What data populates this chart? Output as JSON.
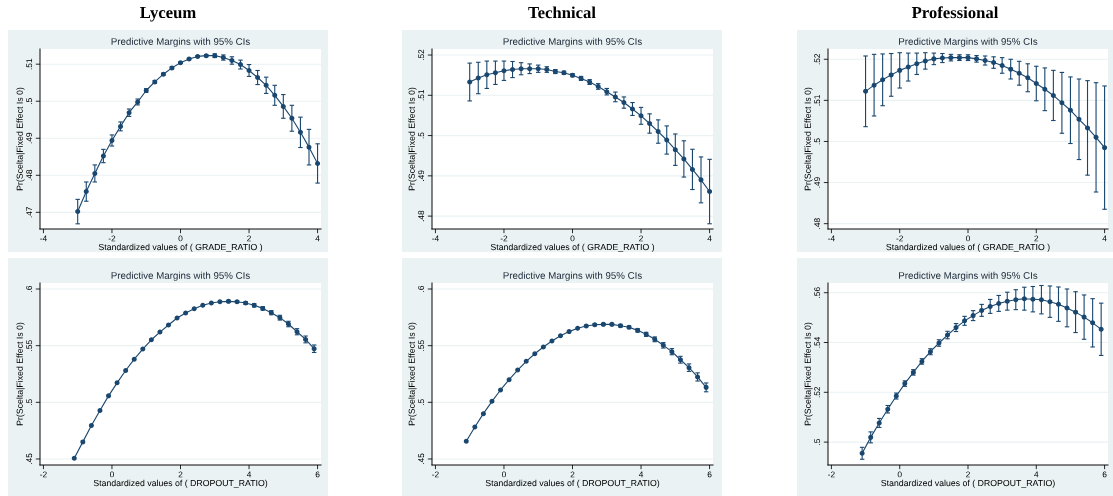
{
  "chart_data": [
    {
      "type": "line",
      "title": "Lyceum",
      "subtitle": "Predictive Margins with 95% CIs",
      "xlabel": "Standardized values of ( GRADE_RATIO )",
      "ylabel": "Pr(Scelta|Fixed Effect Is 0)",
      "x": [
        -3,
        -2.75,
        -2.5,
        -2.25,
        -2,
        -1.75,
        -1.5,
        -1.25,
        -1,
        -0.75,
        -0.5,
        -0.25,
        0,
        0.25,
        0.5,
        0.75,
        1,
        1.25,
        1.5,
        1.75,
        2,
        2.25,
        2.5,
        2.75,
        3,
        3.25,
        3.5,
        3.75,
        4
      ],
      "series": [
        {
          "color": "#1a476f",
          "values": [
            0.4702,
            0.4756,
            0.4805,
            0.4852,
            0.4894,
            0.4932,
            0.4969,
            0.4998,
            0.5029,
            0.5052,
            0.5073,
            0.509,
            0.5104,
            0.5114,
            0.5121,
            0.5123,
            0.5123,
            0.5118,
            0.511,
            0.5099,
            0.5083,
            0.5064,
            0.5043,
            0.5016,
            0.4986,
            0.4954,
            0.4916,
            0.4876,
            0.4832
          ],
          "errors": [
            0.0033,
            0.0026,
            0.0023,
            0.0018,
            0.0015,
            0.0012,
            0.001,
            0.0008,
            0.0005,
            0.0004,
            0.0003,
            0.0003,
            0.0002,
            0.0002,
            0.0002,
            0.0003,
            0.0005,
            0.0007,
            0.001,
            0.0012,
            0.0016,
            0.0019,
            0.0022,
            0.0027,
            0.0032,
            0.0035,
            0.0041,
            0.0048,
            0.0053
          ]
        }
      ],
      "xlim": [
        -4.1,
        4.1
      ],
      "xticks": [
        -4,
        -2,
        0,
        2,
        4
      ],
      "ylim": [
        0.4655,
        0.5141
      ],
      "yticks": [
        {
          "value": 0.47,
          "label": ".47"
        },
        {
          "value": 0.48,
          "label": ".48"
        },
        {
          "value": 0.49,
          "label": ".49"
        },
        {
          "value": 0.5,
          "label": ".5"
        },
        {
          "value": 0.51,
          "label": ".51"
        }
      ],
      "grid": "y",
      "marker": "circle",
      "line_style": "solid"
    },
    {
      "type": "line",
      "title": "Technical",
      "subtitle": "Predictive Margins with 95% CIs",
      "xlabel": "Standardized values of ( GRADE_RATIO )",
      "ylabel": "Pr(Scelta|Fixed Effect Is 0)",
      "x": [
        -3,
        -2.75,
        -2.5,
        -2.25,
        -2,
        -1.75,
        -1.5,
        -1.25,
        -1,
        -0.75,
        -0.5,
        -0.25,
        0,
        0.25,
        0.5,
        0.75,
        1,
        1.25,
        1.5,
        1.75,
        2,
        2.25,
        2.5,
        2.75,
        3,
        3.25,
        3.5,
        3.75,
        4
      ],
      "series": [
        {
          "color": "#1a476f",
          "values": [
            0.5133,
            0.5143,
            0.5151,
            0.5156,
            0.5161,
            0.5164,
            0.5166,
            0.5166,
            0.5166,
            0.5164,
            0.5159,
            0.5156,
            0.515,
            0.5142,
            0.5133,
            0.5122,
            0.5109,
            0.5096,
            0.5082,
            0.5066,
            0.5049,
            0.503,
            0.501,
            0.4989,
            0.4965,
            0.4942,
            0.4916,
            0.489,
            0.4861
          ],
          "errors": [
            0.0047,
            0.0039,
            0.0034,
            0.0029,
            0.0024,
            0.002,
            0.0015,
            0.0012,
            0.0009,
            0.0007,
            0.0005,
            0.0004,
            0.0004,
            0.0005,
            0.0006,
            0.0007,
            0.0008,
            0.0012,
            0.0014,
            0.0016,
            0.0021,
            0.0024,
            0.0029,
            0.0035,
            0.0039,
            0.0045,
            0.005,
            0.0057,
            0.008
          ]
        }
      ],
      "xlim": [
        -4.1,
        4.1
      ],
      "xticks": [
        -4,
        -2,
        0,
        2,
        4
      ],
      "ylim": [
        0.4768,
        0.5215
      ],
      "yticks": [
        {
          "value": 0.48,
          "label": ".48"
        },
        {
          "value": 0.49,
          "label": ".49"
        },
        {
          "value": 0.5,
          "label": ".5"
        },
        {
          "value": 0.51,
          "label": ".51"
        },
        {
          "value": 0.52,
          "label": ".52"
        }
      ],
      "grid": "y",
      "marker": "circle",
      "line_style": "solid"
    },
    {
      "type": "line",
      "title": "Professional",
      "subtitle": "Predictive Margins with 95% CIs",
      "xlabel": "Standardized values of ( GRADE_RATIO )",
      "ylabel": "Pr(Scelta|Fixed Effect Is 0)",
      "x": [
        -3,
        -2.75,
        -2.5,
        -2.25,
        -2,
        -1.75,
        -1.5,
        -1.25,
        -1,
        -0.75,
        -0.5,
        -0.25,
        0,
        0.25,
        0.5,
        0.75,
        1,
        1.25,
        1.5,
        1.75,
        2,
        2.25,
        2.5,
        2.75,
        3,
        3.25,
        3.5,
        3.75,
        4
      ],
      "series": [
        {
          "color": "#1a476f",
          "values": [
            0.5122,
            0.5137,
            0.515,
            0.5162,
            0.5173,
            0.5181,
            0.5189,
            0.5196,
            0.5201,
            0.5203,
            0.5204,
            0.5204,
            0.5204,
            0.5201,
            0.5197,
            0.5192,
            0.5185,
            0.5176,
            0.5166,
            0.5155,
            0.5141,
            0.5127,
            0.5112,
            0.5094,
            0.5076,
            0.5054,
            0.5033,
            0.501,
            0.4985
          ],
          "errors": [
            0.0086,
            0.0075,
            0.0063,
            0.0052,
            0.0043,
            0.0034,
            0.0026,
            0.002,
            0.0014,
            0.0011,
            0.0008,
            0.0007,
            0.0007,
            0.0008,
            0.0011,
            0.0014,
            0.0019,
            0.0024,
            0.0029,
            0.0034,
            0.0042,
            0.0052,
            0.0061,
            0.0074,
            0.0081,
            0.0098,
            0.0115,
            0.0133,
            0.015
          ]
        }
      ],
      "xlim": [
        -4.1,
        4.1
      ],
      "xticks": [
        -4,
        -2,
        0,
        2,
        4
      ],
      "ylim": [
        0.4787,
        0.5225
      ],
      "yticks": [
        {
          "value": 0.48,
          "label": ".48"
        },
        {
          "value": 0.49,
          "label": ".49"
        },
        {
          "value": 0.5,
          "label": ".5"
        },
        {
          "value": 0.51,
          "label": ".51"
        },
        {
          "value": 0.52,
          "label": ".52"
        }
      ],
      "grid": "y",
      "marker": "circle",
      "line_style": "solid"
    },
    {
      "type": "line",
      "title": "Predictive Margins with 95% CIs",
      "xlabel": "Standardized values of ( DROPOUT_RATIO)",
      "ylabel": "Pr(Scelta|Fixed Effect Is 0)",
      "x": [
        -1.1,
        -0.85,
        -0.6,
        -0.35,
        -0.1,
        0.15,
        0.4,
        0.65,
        0.9,
        1.15,
        1.4,
        1.65,
        1.9,
        2.15,
        2.4,
        2.65,
        2.9,
        3.15,
        3.4,
        3.65,
        3.9,
        4.15,
        4.4,
        4.65,
        4.9,
        5.15,
        5.4,
        5.65,
        5.9
      ],
      "series": [
        {
          "color": "#1a476f",
          "values": [
            0.4506,
            0.4651,
            0.4795,
            0.4928,
            0.5057,
            0.5172,
            0.5281,
            0.5381,
            0.547,
            0.5552,
            0.562,
            0.5682,
            0.5744,
            0.5788,
            0.5826,
            0.5856,
            0.5876,
            0.5888,
            0.5891,
            0.5888,
            0.5876,
            0.5856,
            0.5829,
            0.5791,
            0.5747,
            0.5691,
            0.5623,
            0.5555,
            0.5473
          ],
          "errors": [
            null,
            null,
            null,
            null,
            null,
            null,
            null,
            null,
            null,
            null,
            null,
            null,
            null,
            null,
            null,
            null,
            null,
            null,
            0.0009,
            0.0009,
            0.0012,
            0.0015,
            0.0015,
            0.0018,
            0.0021,
            0.0024,
            0.0027,
            0.003,
            0.0033
          ]
        }
      ],
      "xlim": [
        -2.1,
        6.1
      ],
      "xticks": [
        -2,
        0,
        2,
        4,
        6
      ],
      "ylim": [
        0.4447,
        0.6053
      ],
      "yticks": [
        {
          "value": 0.45,
          "label": ".45"
        },
        {
          "value": 0.5,
          "label": ".5"
        },
        {
          "value": 0.55,
          "label": ".55"
        },
        {
          "value": 0.6,
          "label": ".6"
        }
      ],
      "grid": "y",
      "marker": "circle",
      "line_style": "solid"
    },
    {
      "type": "line",
      "title": "Predictive Margins with 95% CIs",
      "xlabel": "Standardized values of ( DROPOUT_RATIO)",
      "ylabel": "Pr(Scelta|Fixed Effect Is 0)",
      "x": [
        -1.1,
        -0.85,
        -0.6,
        -0.35,
        -0.1,
        0.15,
        0.4,
        0.65,
        0.9,
        1.15,
        1.4,
        1.65,
        1.9,
        2.15,
        2.4,
        2.65,
        2.9,
        3.15,
        3.4,
        3.65,
        3.9,
        4.15,
        4.4,
        4.65,
        4.9,
        5.15,
        5.4,
        5.65,
        5.9
      ],
      "series": [
        {
          "color": "#1a476f",
          "values": [
            0.4656,
            0.4782,
            0.49,
            0.5009,
            0.5109,
            0.52,
            0.5285,
            0.5362,
            0.5429,
            0.5488,
            0.5541,
            0.5588,
            0.5624,
            0.5653,
            0.5674,
            0.5685,
            0.5688,
            0.5688,
            0.5676,
            0.5662,
            0.5635,
            0.56,
            0.5556,
            0.5503,
            0.5447,
            0.5376,
            0.5306,
            0.5224,
            0.5132
          ],
          "errors": [
            null,
            null,
            null,
            null,
            null,
            null,
            null,
            null,
            null,
            null,
            null,
            null,
            null,
            null,
            0.0006,
            0.0009,
            0.0009,
            0.0009,
            0.0012,
            0.0012,
            0.0015,
            0.0018,
            0.0021,
            0.0024,
            0.0027,
            0.003,
            0.0033,
            0.0036,
            0.0039
          ]
        }
      ],
      "xlim": [
        -2.1,
        6.1
      ],
      "xticks": [
        -2,
        0,
        2,
        4,
        6
      ],
      "ylim": [
        0.4447,
        0.6053
      ],
      "yticks": [
        {
          "value": 0.45,
          "label": ".45"
        },
        {
          "value": 0.5,
          "label": ".5"
        },
        {
          "value": 0.55,
          "label": ".55"
        },
        {
          "value": 0.6,
          "label": ".6"
        }
      ],
      "grid": "y",
      "marker": "circle",
      "line_style": "solid"
    },
    {
      "type": "line",
      "title": "Predictive Margins with 95% CIs",
      "xlabel": "Standardized values of ( DROPOUT_RATIO)",
      "ylabel": "Pr(Scelta|Fixed Effect Is 0)",
      "x": [
        -1.1,
        -0.85,
        -0.6,
        -0.35,
        -0.1,
        0.15,
        0.4,
        0.65,
        0.9,
        1.15,
        1.4,
        1.65,
        1.9,
        2.15,
        2.4,
        2.65,
        2.9,
        3.15,
        3.4,
        3.65,
        3.9,
        4.15,
        4.4,
        4.65,
        4.9,
        5.15,
        5.4,
        5.65,
        5.9
      ],
      "series": [
        {
          "color": "#1a476f",
          "values": [
            0.4955,
            0.5019,
            0.5077,
            0.5132,
            0.5185,
            0.5235,
            0.528,
            0.5324,
            0.5363,
            0.5398,
            0.543,
            0.546,
            0.5487,
            0.5508,
            0.5529,
            0.5545,
            0.5557,
            0.5566,
            0.5572,
            0.5576,
            0.5574,
            0.5572,
            0.5564,
            0.5554,
            0.5539,
            0.5522,
            0.5502,
            0.5479,
            0.5453
          ],
          "errors": [
            0.0024,
            0.0022,
            0.0018,
            0.0015,
            0.0012,
            0.0011,
            0.0011,
            0.0011,
            0.0012,
            0.0013,
            0.0015,
            0.0016,
            0.0018,
            0.002,
            0.0024,
            0.0028,
            0.0032,
            0.0036,
            0.004,
            0.0046,
            0.0051,
            0.0057,
            0.0063,
            0.0069,
            0.0076,
            0.0082,
            0.0089,
            0.0097,
            0.0105
          ]
        }
      ],
      "xlim": [
        -2.1,
        6.1
      ],
      "xticks": [
        -2,
        0,
        2,
        4,
        6
      ],
      "ylim": [
        0.4908,
        0.5639
      ],
      "yticks": [
        {
          "value": 0.5,
          "label": ".5"
        },
        {
          "value": 0.52,
          "label": ".52"
        },
        {
          "value": 0.54,
          "label": ".54"
        },
        {
          "value": 0.56,
          "label": ".56"
        }
      ],
      "grid": "y",
      "marker": "circle",
      "line_style": "solid"
    }
  ]
}
